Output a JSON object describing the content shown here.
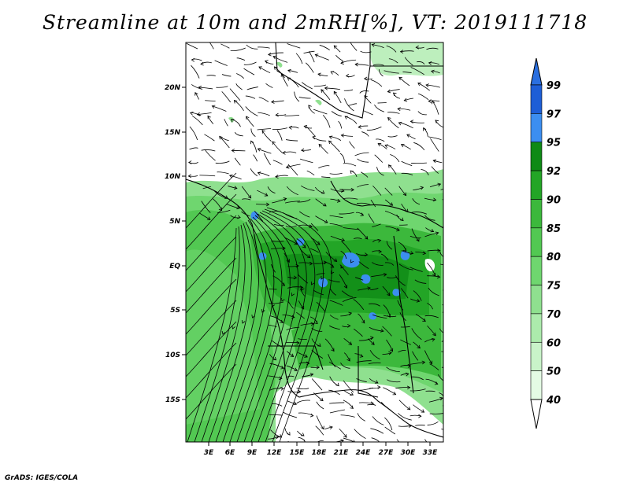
{
  "title": "Streamline at 10m and 2mRH[%], VT: 2019111718",
  "credit": "GrADS: IGES/COLA",
  "map": {
    "lat_ticks": [
      "20N",
      "15N",
      "10N",
      "5N",
      "EQ",
      "5S",
      "10S",
      "15S"
    ],
    "lon_ticks": [
      "3E",
      "6E",
      "9E",
      "12E",
      "15E",
      "18E",
      "21E",
      "24E",
      "27E",
      "30E",
      "33E"
    ]
  },
  "colorbar": {
    "labels": [
      "99",
      "97",
      "95",
      "92",
      "90",
      "85",
      "80",
      "75",
      "70",
      "60",
      "50",
      "40"
    ],
    "colors": [
      "#1e5ed6",
      "#3c8ef0",
      "#0f8a16",
      "#23a526",
      "#3cb83c",
      "#52c852",
      "#6fd66f",
      "#8fe08f",
      "#acebac",
      "#c9f3c9",
      "#e4fbe4"
    ],
    "top_arrow_color": "#2a6fe0",
    "bottom_arrow_color": "#ffffff"
  }
}
